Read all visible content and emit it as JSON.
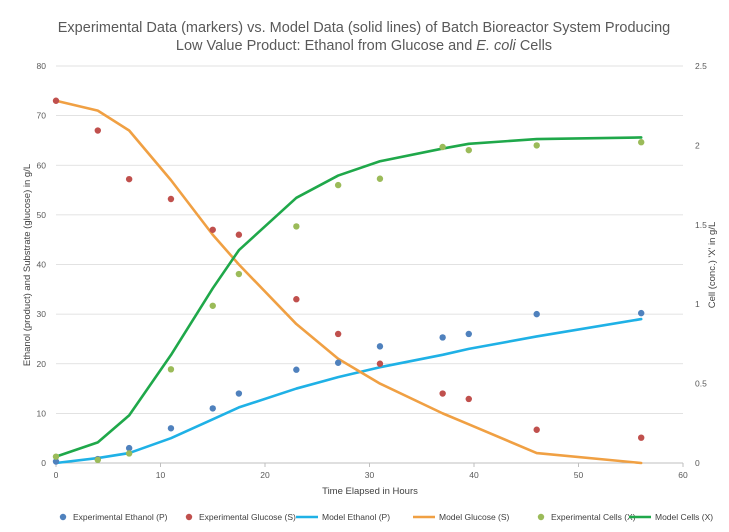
{
  "chart_data": {
    "type": "line",
    "title_line1": "Experimental Data (markers) vs. Model Data (solid lines) of Batch Bioreactor System Producing",
    "title_line2_prefix": "Low Value Product: Ethanol from Glucose and ",
    "title_line2_italic": "E. coli",
    "title_line2_suffix": " Cells",
    "xlabel": "Time Elapsed in Hours",
    "ylabel_left": "Ethanol (product) and Substrate (glucose) in g/L",
    "ylabel_right": "Cell (conc.) 'X' in g/L",
    "xlim": [
      0,
      60
    ],
    "ylim_left": [
      0,
      80
    ],
    "ylim_right": [
      0,
      2.5
    ],
    "x_ticks": [
      0,
      10,
      20,
      30,
      40,
      50,
      60
    ],
    "y_left_ticks": [
      0,
      10,
      20,
      30,
      40,
      50,
      60,
      70,
      80
    ],
    "y_right_ticks": [
      0,
      0.5,
      1,
      1.5,
      2,
      2.5
    ],
    "grid": true,
    "legend_position": "bottom",
    "series": [
      {
        "name": "Experimental Ethanol (P)",
        "kind": "marker",
        "axis": "left",
        "color": "#4f81bd",
        "points": [
          [
            0,
            0.3
          ],
          [
            4,
            0.8
          ],
          [
            7,
            3
          ],
          [
            11,
            7
          ],
          [
            15,
            11
          ],
          [
            17.5,
            14
          ],
          [
            23,
            18.8
          ],
          [
            27,
            20.2
          ],
          [
            31,
            23.5
          ],
          [
            37,
            25.3
          ],
          [
            39.5,
            26
          ],
          [
            46,
            30
          ],
          [
            56,
            30.2
          ]
        ]
      },
      {
        "name": "Experimental Glucose (S)",
        "kind": "marker",
        "axis": "left",
        "color": "#c0504d",
        "points": [
          [
            0,
            73
          ],
          [
            4,
            67
          ],
          [
            7,
            57.2
          ],
          [
            11,
            53.2
          ],
          [
            15,
            47
          ],
          [
            17.5,
            46
          ],
          [
            23,
            33
          ],
          [
            27,
            26
          ],
          [
            31,
            20
          ],
          [
            37,
            14
          ],
          [
            39.5,
            12.9
          ],
          [
            46,
            6.7
          ],
          [
            56,
            5.1
          ]
        ]
      },
      {
        "name": "Model Ethanol (P)",
        "kind": "line",
        "axis": "left",
        "color": "#1fb1e6",
        "points": [
          [
            0,
            0
          ],
          [
            4,
            1
          ],
          [
            7,
            2
          ],
          [
            11,
            5
          ],
          [
            15,
            8.8
          ],
          [
            17.5,
            11.2
          ],
          [
            23,
            15
          ],
          [
            27,
            17.3
          ],
          [
            31,
            19.3
          ],
          [
            37,
            21.8
          ],
          [
            39.5,
            23
          ],
          [
            46,
            25.5
          ],
          [
            56,
            29
          ]
        ]
      },
      {
        "name": "Model Glucose (S)",
        "kind": "line",
        "axis": "left",
        "color": "#f0a043",
        "points": [
          [
            0,
            73
          ],
          [
            4,
            71
          ],
          [
            7,
            67
          ],
          [
            11,
            57
          ],
          [
            15,
            46
          ],
          [
            17.5,
            40
          ],
          [
            23,
            28
          ],
          [
            27,
            21
          ],
          [
            31,
            16
          ],
          [
            37,
            10
          ],
          [
            39.5,
            7.8
          ],
          [
            46,
            2
          ],
          [
            56,
            0
          ]
        ]
      },
      {
        "name": "Experimental Cells (X)",
        "kind": "marker",
        "axis": "right",
        "color": "#9bbb59",
        "points": [
          [
            0,
            0.04
          ],
          [
            4,
            0.02
          ],
          [
            7,
            0.06
          ],
          [
            11,
            0.59
          ],
          [
            15,
            0.99
          ],
          [
            17.5,
            1.19
          ],
          [
            23,
            1.49
          ],
          [
            27,
            1.75
          ],
          [
            31,
            1.79
          ],
          [
            37,
            1.99
          ],
          [
            39.5,
            1.97
          ],
          [
            46,
            2
          ],
          [
            56,
            2.02
          ]
        ]
      },
      {
        "name": "Model Cells (X)",
        "kind": "line",
        "axis": "right",
        "color": "#1fa84a",
        "points": [
          [
            0,
            0.04
          ],
          [
            4,
            0.13
          ],
          [
            7,
            0.3
          ],
          [
            11,
            0.68
          ],
          [
            15,
            1.1
          ],
          [
            17.5,
            1.34
          ],
          [
            23,
            1.67
          ],
          [
            27,
            1.81
          ],
          [
            31,
            1.9
          ],
          [
            37,
            1.98
          ],
          [
            39.5,
            2.01
          ],
          [
            46,
            2.04
          ],
          [
            56,
            2.05
          ]
        ]
      }
    ]
  }
}
